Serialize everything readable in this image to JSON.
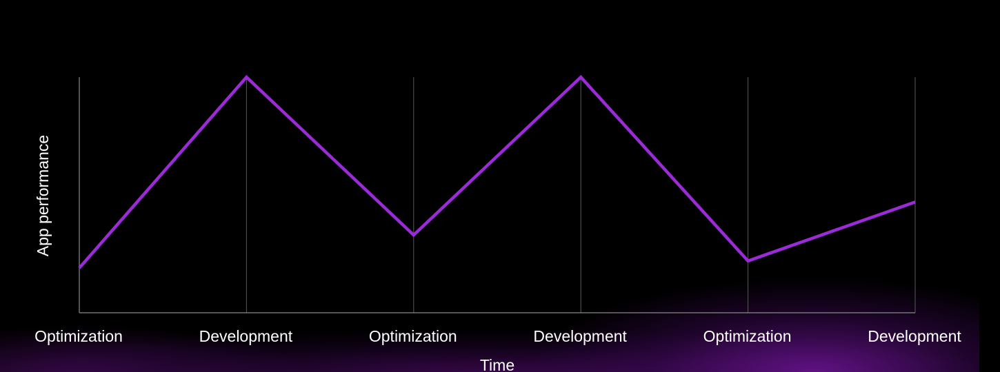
{
  "chart_data": {
    "type": "line",
    "xlabel": "Time",
    "ylabel": "App performance",
    "categories": [
      "Optimization",
      "Development",
      "Optimization",
      "Development",
      "Optimization",
      "Development"
    ],
    "series": [
      {
        "values": [
          0.19,
          1.0,
          0.33,
          1.0,
          0.22,
          0.47
        ]
      }
    ],
    "ylim": [
      0,
      1
    ],
    "grid": "vertical",
    "line_color": "#9b2bd9",
    "grid_color": "#5a5a5a",
    "background_color": "#000000",
    "glow_color": "#6e1496"
  }
}
